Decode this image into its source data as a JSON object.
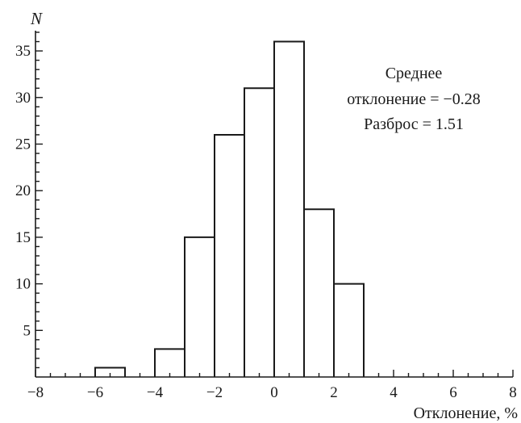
{
  "chart_data": {
    "type": "bar",
    "title": "",
    "xlabel": "Отклонение, %",
    "ylabel": "N",
    "xlim": [
      -8,
      8
    ],
    "ylim": [
      0,
      37
    ],
    "grid": false,
    "x_ticks": [
      -8,
      -6,
      -4,
      -2,
      0,
      2,
      4,
      6,
      8
    ],
    "x_tick_labels": [
      "−8",
      "−6",
      "−4",
      "−2",
      "0",
      "2",
      "4",
      "6",
      "8"
    ],
    "y_ticks": [
      5,
      10,
      15,
      20,
      25,
      30,
      35
    ],
    "y_tick_labels": [
      "5",
      "10",
      "15",
      "20",
      "25",
      "30",
      "35"
    ],
    "bins": [
      {
        "from": -6,
        "to": -5,
        "count": 1
      },
      {
        "from": -5,
        "to": -4,
        "count": 0
      },
      {
        "from": -4,
        "to": -3,
        "count": 3
      },
      {
        "from": -3,
        "to": -2,
        "count": 15
      },
      {
        "from": -2,
        "to": -1,
        "count": 26
      },
      {
        "from": -1,
        "to": 0,
        "count": 31
      },
      {
        "from": 0,
        "to": 1,
        "count": 36
      },
      {
        "from": 1,
        "to": 2,
        "count": 18
      },
      {
        "from": 2,
        "to": 3,
        "count": 10
      }
    ],
    "annotation": {
      "lines": [
        "Среднее",
        "отклонение = −0.28",
        "Разброс = 1.51"
      ]
    }
  }
}
